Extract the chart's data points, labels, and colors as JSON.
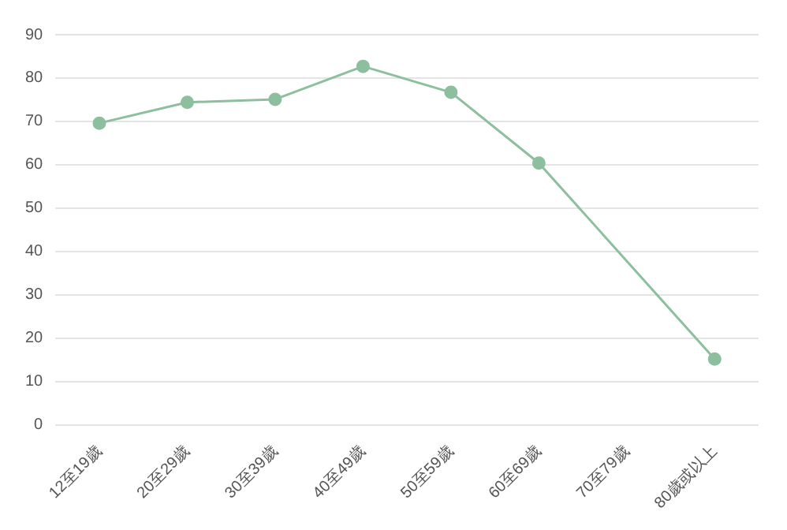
{
  "chart_data": {
    "type": "line",
    "categories": [
      "12至19歲",
      "20至29歲",
      "30至39歲",
      "40至49歲",
      "50至59歲",
      "60至69歲",
      "70至79歲",
      "80歲或以上"
    ],
    "series": [
      {
        "color": "#8dbf9f",
        "values": [
          69.6,
          74.4,
          75.1,
          82.7,
          76.7,
          60.4,
          null,
          15.2
        ]
      }
    ],
    "ylim": [
      0,
      90
    ],
    "yticks": [
      0,
      10,
      20,
      30,
      40,
      50,
      60,
      70,
      80,
      90
    ],
    "grid": "y",
    "legend": false,
    "marker": "circle",
    "line_style": "solid"
  }
}
